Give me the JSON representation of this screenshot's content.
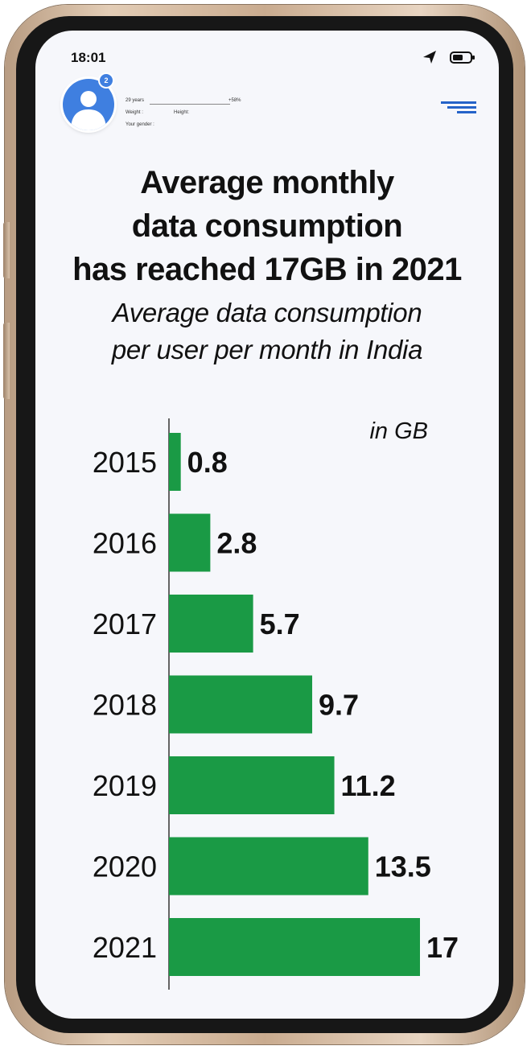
{
  "status_bar": {
    "time": "18:01",
    "icons": [
      "location-arrow-icon",
      "battery-icon"
    ]
  },
  "profile": {
    "badge": "2",
    "age": "29 years",
    "percent": "+58%",
    "weight_label": "Weight :",
    "height_label": "Height:",
    "gender_label": "Your gender :"
  },
  "header": {
    "title_lines": [
      "Average monthly",
      "data consumption",
      "has reached 17GB in 2021"
    ],
    "subtitle_lines": [
      "Average data consumption",
      "per user per month in India"
    ]
  },
  "colors": {
    "bar": "#1a9a45",
    "screen": "#f6f7fb",
    "accent": "#3f7fe0"
  },
  "chart_data": {
    "type": "bar",
    "orientation": "horizontal",
    "title": "Average monthly data consumption has reached 17GB in 2021",
    "subtitle": "Average data consumption per user per month in India",
    "unit_label": "in GB",
    "categories": [
      "2015",
      "2016",
      "2017",
      "2018",
      "2019",
      "2020",
      "2021"
    ],
    "values": [
      0.8,
      2.8,
      5.7,
      9.7,
      11.2,
      13.5,
      17
    ],
    "value_labels": [
      "0.8",
      "2.8",
      "5.7",
      "9.7",
      "11.2",
      "13.5",
      "17"
    ],
    "xlim": [
      0,
      17
    ],
    "grid": false,
    "legend": "none"
  }
}
